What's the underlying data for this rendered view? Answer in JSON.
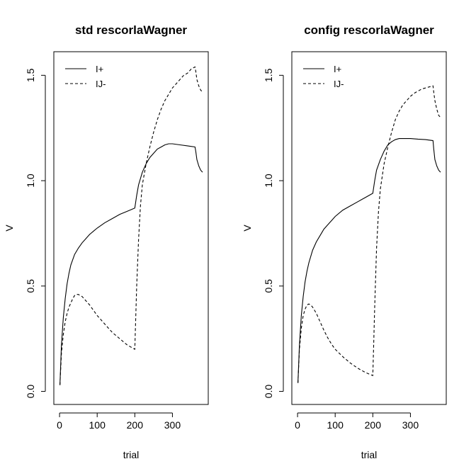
{
  "chart_data": [
    {
      "type": "line",
      "title": "std rescorlaWagner",
      "xlabel": "trial",
      "ylabel": "V",
      "xlim": [
        0,
        380
      ],
      "ylim": [
        0,
        1.55
      ],
      "xticks": [
        0,
        100,
        200,
        300
      ],
      "yticks": [
        0.0,
        0.5,
        1.0,
        1.5
      ],
      "ytick_labels": [
        "0.0",
        "0.5",
        "1.0",
        "1.5"
      ],
      "legend_position": "top-left",
      "series": [
        {
          "name": "I+",
          "style": "solid",
          "x": [
            1,
            5,
            10,
            15,
            20,
            25,
            30,
            40,
            50,
            60,
            70,
            80,
            90,
            100,
            120,
            140,
            160,
            180,
            200,
            205,
            210,
            220,
            230,
            240,
            250,
            260,
            270,
            280,
            290,
            300,
            320,
            340,
            360,
            362,
            365,
            370,
            375,
            380
          ],
          "y": [
            0.03,
            0.22,
            0.35,
            0.44,
            0.51,
            0.56,
            0.6,
            0.65,
            0.68,
            0.705,
            0.725,
            0.745,
            0.76,
            0.775,
            0.8,
            0.82,
            0.84,
            0.855,
            0.87,
            0.93,
            0.98,
            1.04,
            1.08,
            1.11,
            1.13,
            1.15,
            1.16,
            1.17,
            1.175,
            1.175,
            1.17,
            1.165,
            1.16,
            1.14,
            1.1,
            1.07,
            1.05,
            1.04
          ]
        },
        {
          "name": "IJ-",
          "style": "dashed",
          "x": [
            1,
            5,
            10,
            15,
            20,
            25,
            30,
            35,
            40,
            45,
            50,
            55,
            60,
            70,
            80,
            90,
            100,
            120,
            140,
            160,
            180,
            200,
            202,
            205,
            210,
            215,
            220,
            230,
            240,
            250,
            260,
            270,
            280,
            290,
            300,
            310,
            320,
            330,
            340,
            350,
            360,
            362,
            365,
            370,
            375,
            380
          ],
          "y": [
            0.03,
            0.18,
            0.27,
            0.33,
            0.37,
            0.4,
            0.42,
            0.44,
            0.455,
            0.46,
            0.46,
            0.455,
            0.45,
            0.43,
            0.41,
            0.385,
            0.36,
            0.32,
            0.28,
            0.25,
            0.22,
            0.2,
            0.32,
            0.5,
            0.72,
            0.88,
            0.98,
            1.08,
            1.16,
            1.23,
            1.29,
            1.34,
            1.38,
            1.41,
            1.44,
            1.46,
            1.48,
            1.5,
            1.51,
            1.53,
            1.54,
            1.52,
            1.48,
            1.45,
            1.43,
            1.42
          ]
        }
      ]
    },
    {
      "type": "line",
      "title": "config rescorlaWagner",
      "xlabel": "trial",
      "ylabel": "V",
      "xlim": [
        0,
        380
      ],
      "ylim": [
        0,
        1.55
      ],
      "xticks": [
        0,
        100,
        200,
        300
      ],
      "yticks": [
        0.0,
        0.5,
        1.0,
        1.5
      ],
      "ytick_labels": [
        "0.0",
        "0.5",
        "1.0",
        "1.5"
      ],
      "legend_position": "top-left",
      "series": [
        {
          "name": "I+",
          "style": "solid",
          "x": [
            1,
            5,
            10,
            15,
            20,
            25,
            30,
            40,
            50,
            60,
            70,
            80,
            90,
            100,
            120,
            140,
            160,
            180,
            200,
            205,
            210,
            220,
            230,
            240,
            250,
            260,
            270,
            280,
            300,
            320,
            340,
            360,
            362,
            365,
            370,
            375,
            380
          ],
          "y": [
            0.04,
            0.22,
            0.36,
            0.45,
            0.52,
            0.57,
            0.61,
            0.67,
            0.71,
            0.74,
            0.77,
            0.79,
            0.81,
            0.83,
            0.86,
            0.88,
            0.9,
            0.92,
            0.94,
            1.0,
            1.05,
            1.1,
            1.14,
            1.17,
            1.185,
            1.195,
            1.2,
            1.2,
            1.2,
            1.197,
            1.195,
            1.19,
            1.15,
            1.1,
            1.07,
            1.05,
            1.04
          ]
        },
        {
          "name": "IJ-",
          "style": "dashed",
          "x": [
            1,
            5,
            10,
            15,
            20,
            25,
            30,
            35,
            40,
            45,
            50,
            60,
            70,
            80,
            90,
            100,
            120,
            140,
            160,
            180,
            200,
            202,
            205,
            210,
            215,
            220,
            230,
            240,
            250,
            260,
            270,
            280,
            290,
            300,
            310,
            320,
            330,
            340,
            350,
            360,
            362,
            365,
            370,
            375,
            380
          ],
          "y": [
            0.04,
            0.2,
            0.3,
            0.36,
            0.39,
            0.41,
            0.415,
            0.41,
            0.4,
            0.385,
            0.37,
            0.33,
            0.29,
            0.255,
            0.225,
            0.2,
            0.165,
            0.135,
            0.11,
            0.09,
            0.075,
            0.2,
            0.4,
            0.68,
            0.85,
            0.96,
            1.08,
            1.16,
            1.23,
            1.29,
            1.33,
            1.36,
            1.38,
            1.4,
            1.415,
            1.425,
            1.435,
            1.44,
            1.445,
            1.45,
            1.42,
            1.38,
            1.34,
            1.31,
            1.3
          ]
        }
      ]
    }
  ]
}
